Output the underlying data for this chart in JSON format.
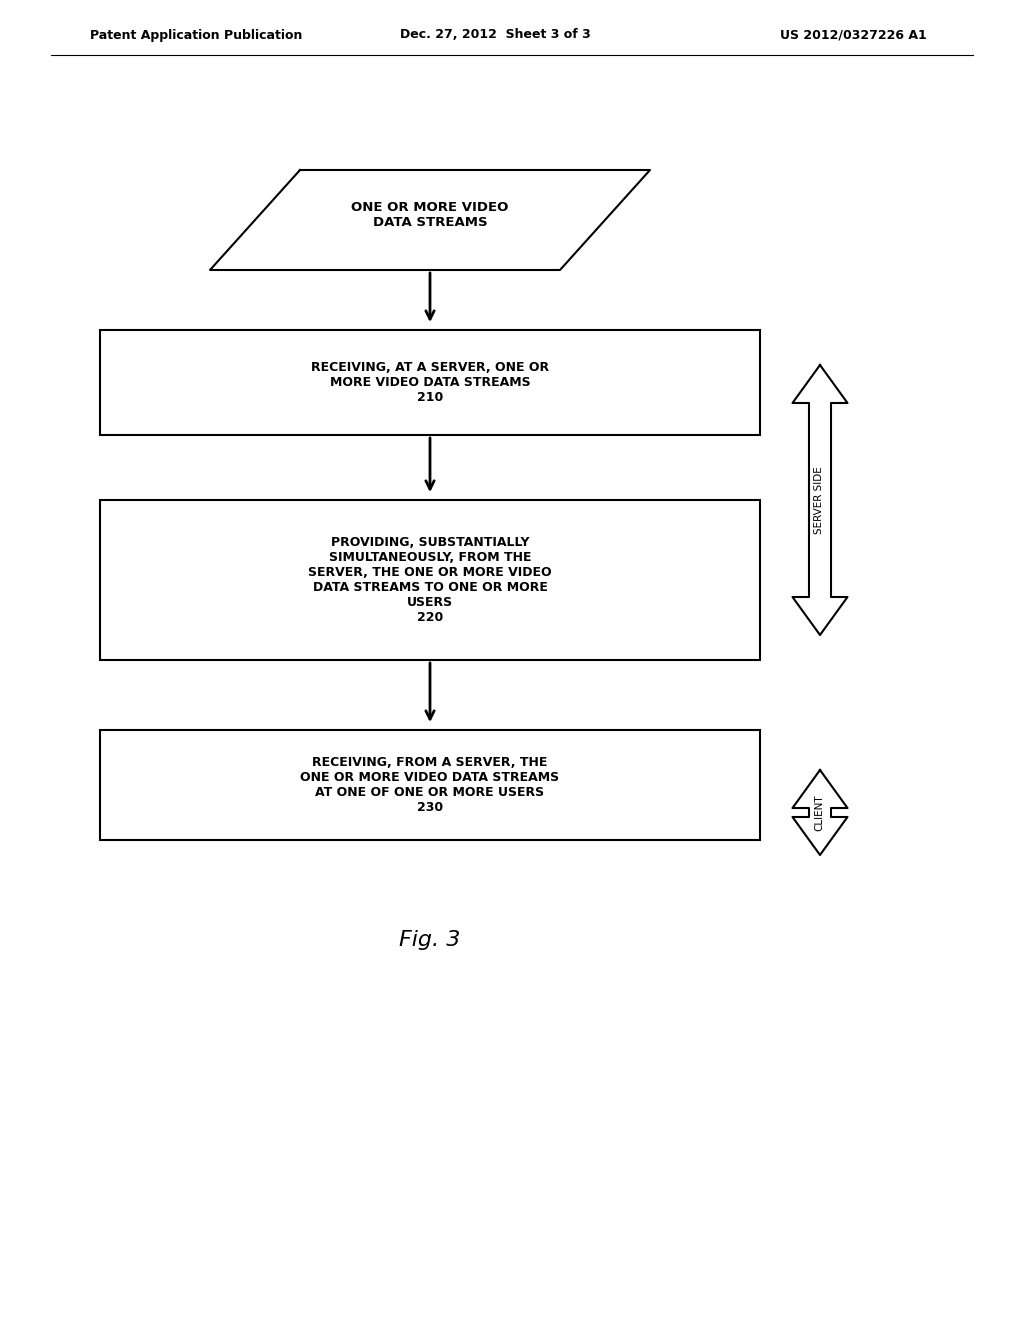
{
  "bg_color": "#ffffff",
  "header_left": "Patent Application Publication",
  "header_mid": "Dec. 27, 2012  Sheet 3 of 3",
  "header_right": "US 2012/0327226 A1",
  "parallelogram_text": "ONE OR MORE VIDEO\nDATA STREAMS",
  "box1_text": "RECEIVING, AT A SERVER, ONE OR\nMORE VIDEO DATA STREAMS\n210",
  "box2_text": "PROVIDING, SUBSTANTIALLY\nSIMULTANEOUSLY, FROM THE\nSERVER, THE ONE OR MORE VIDEO\nDATA STREAMS TO ONE OR MORE\nUSERS\n220",
  "box3_text": "RECEIVING, FROM A SERVER, THE\nONE OR MORE VIDEO DATA STREAMS\nAT ONE OF ONE OR MORE USERS\n230",
  "footer_text": "Fig. 3",
  "server_side_label": "SERVER SIDE",
  "client_label": "CLIENT",
  "line_color": "#000000",
  "text_color": "#000000",
  "font_family": "Courier New"
}
